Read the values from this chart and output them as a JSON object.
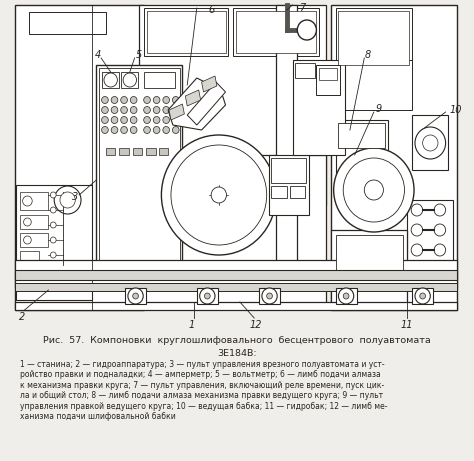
{
  "title": "Рис.  57.  Компоновки  круглошлифовального  бесцентрового  полуавтомата",
  "title2": "3Е184В:",
  "caption": "1 — станина; 2 — гидроаппаратура; 3 — пульт управления врезного полуавтомата и уст-\nройство правки и подналадки; 4 — амперметр; 5 — вольтметр; 6 — лимб подачи алмаза\nк механизма правки круга; 7 — пульт управления, включающий реле времени, пуск цик-\nла и общий стол; 8 — лимб подачи алмаза механизма правки ведущего круга; 9 — пульт\nуправления правкой ведущего круга; 10 — ведущая бабка; 11 — гидробак; 12 — лимб ме-\nханизма подачи шлифовальной бабки",
  "bg": "#f0eeea",
  "lc": "#2a2520",
  "fc_light": "#e8e6e0",
  "fc_mid": "#d8d6d0",
  "fc_dark": "#c8c6c0",
  "fc_darker": "#b8b6b0"
}
